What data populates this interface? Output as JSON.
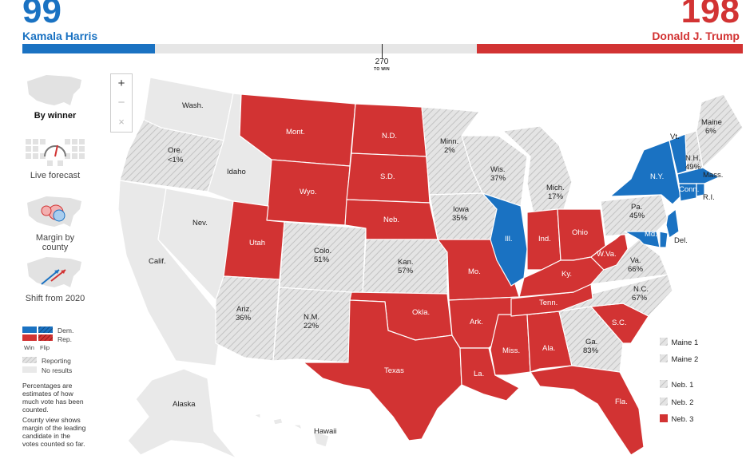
{
  "header": {
    "dem_count": "99",
    "dem_name": "Kamala Harris",
    "rep_count": "198",
    "rep_name": "Donald J. Trump",
    "threshold": "270",
    "threshold_label": "TO WIN"
  },
  "colors": {
    "dem": "#1a72c2",
    "rep": "#d23333",
    "reporting": "#dcdcdc",
    "no_results": "#e9e9e9"
  },
  "views": [
    {
      "label": "By winner",
      "active": true
    },
    {
      "label": "Live forecast",
      "active": false
    },
    {
      "label": "Margin by county",
      "active": false
    },
    {
      "label": "Shift from 2020",
      "active": false
    }
  ],
  "legend": {
    "dem": "Dem.",
    "rep": "Rep.",
    "win": "Win",
    "flip": "Flip",
    "reporting": "Reporting",
    "no_results": "No results",
    "note1": "Percentages are estimates of how much vote has been counted.",
    "note2": "County view shows margin of the leading candidate in the votes counted so far."
  },
  "zoom": {
    "in": "+",
    "out": "−",
    "reset": "×"
  },
  "states": {
    "wash": "Wash.",
    "ore": "Ore.",
    "ore_pct": "<1%",
    "idaho": "Idaho",
    "mont": "Mont.",
    "nd": "N.D.",
    "minn": "Minn.",
    "minn_pct": "2%",
    "maine": "Maine",
    "maine_pct": "6%",
    "vt": "Vt.",
    "nh": "N.H.",
    "nh_pct": "49%",
    "mass": "Mass.",
    "ny": "N.Y.",
    "conn": "Conn.",
    "ri": "R.I.",
    "wis": "Wis.",
    "wis_pct": "37%",
    "sd": "S.D.",
    "wyo": "Wyo.",
    "mich": "Mich.",
    "mich_pct": "17%",
    "nev": "Nev.",
    "iowa": "Iowa",
    "iowa_pct": "35%",
    "neb": "Neb.",
    "pa": "Pa.",
    "pa_pct": "45%",
    "nj": "N.J.",
    "ill": "Ill.",
    "ind": "Ind.",
    "ohio": "Ohio",
    "utah": "Utah",
    "colo": "Colo.",
    "colo_pct": "51%",
    "md": "Md.",
    "del": "Del.",
    "calif": "Calif.",
    "wva": "W.Va.",
    "va": "Va.",
    "va_pct": "66%",
    "kan": "Kan.",
    "kan_pct": "57%",
    "mo": "Mo.",
    "ky": "Ky.",
    "nc": "N.C.",
    "nc_pct": "67%",
    "tenn": "Tenn.",
    "ariz": "Ariz.",
    "ariz_pct": "36%",
    "nm": "N.M.",
    "nm_pct": "22%",
    "okla": "Okla.",
    "ark": "Ark.",
    "sc": "S.C.",
    "ga": "Ga.",
    "ga_pct": "83%",
    "miss": "Miss.",
    "ala": "Ala.",
    "texas": "Texas",
    "la": "La.",
    "fla": "Fla.",
    "alaska": "Alaska",
    "hawaii": "Hawaii"
  },
  "districts": [
    {
      "label": "Maine 1",
      "status": "reporting"
    },
    {
      "label": "Maine 2",
      "status": "reporting"
    },
    {
      "label": "Neb. 1",
      "status": "reporting"
    },
    {
      "label": "Neb. 2",
      "status": "reporting"
    },
    {
      "label": "Neb. 3",
      "status": "rep"
    }
  ]
}
